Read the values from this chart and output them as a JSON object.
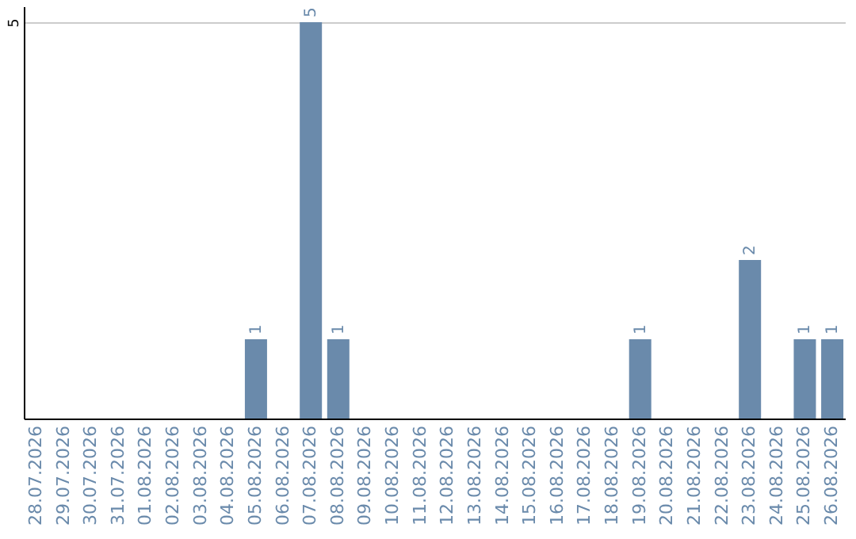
{
  "chart_data": {
    "type": "bar",
    "categories": [
      "28.07.2026",
      "29.07.2026",
      "30.07.2026",
      "31.07.2026",
      "01.08.2026",
      "02.08.2026",
      "03.08.2026",
      "04.08.2026",
      "05.08.2026",
      "06.08.2026",
      "07.08.2026",
      "08.08.2026",
      "09.08.2026",
      "10.08.2026",
      "11.08.2026",
      "12.08.2026",
      "13.08.2026",
      "14.08.2026",
      "15.08.2026",
      "16.08.2026",
      "17.08.2026",
      "18.08.2026",
      "19.08.2026",
      "20.08.2026",
      "21.08.2026",
      "22.08.2026",
      "23.08.2026",
      "24.08.2026",
      "25.08.2026",
      "26.08.2026"
    ],
    "values": [
      0,
      0,
      0,
      0,
      0,
      0,
      0,
      0,
      1,
      0,
      5,
      1,
      0,
      0,
      0,
      0,
      0,
      0,
      0,
      0,
      0,
      0,
      1,
      0,
      0,
      0,
      2,
      0,
      1,
      1
    ],
    "value_labels": [
      null,
      null,
      null,
      null,
      null,
      null,
      null,
      null,
      "1",
      null,
      "5",
      "1",
      null,
      null,
      null,
      null,
      null,
      null,
      null,
      null,
      null,
      null,
      "1",
      null,
      null,
      null,
      "2",
      null,
      "1",
      "1"
    ],
    "color": "#6a8aab",
    "ylim": [
      0,
      5.2
    ],
    "yticks": [
      5
    ],
    "grid": "y"
  }
}
